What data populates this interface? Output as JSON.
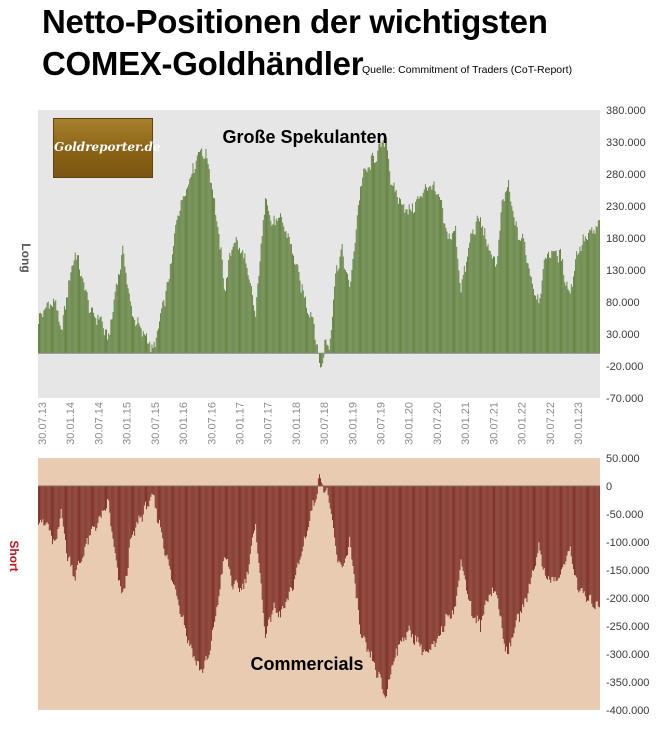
{
  "title_line1": "Netto-Positionen der wichtigsten",
  "title_line2": "COMEX-Goldhändler",
  "source": "Quelle: Commitment of Traders (CoT-Report)",
  "logo_text": "Goldreporter.de",
  "colors": {
    "long_bar": "#5e7f3a",
    "short_bar": "#7a2a23",
    "top_bg": "#e6e6e6",
    "bottom_bg": "#e8cbb1",
    "short_label": "#c0141c"
  },
  "chart_data": [
    {
      "type": "bar",
      "panel_label": "Große Spekulanten",
      "ylabel": "Long",
      "ylim": [
        -70000,
        380000
      ],
      "yticks": [
        "380.000",
        "330.000",
        "280.000",
        "230.000",
        "180.000",
        "130.000",
        "80.000",
        "30.000",
        "-20.000",
        "-70.000"
      ],
      "date_labels": [
        "30.07.13",
        "30.01.14",
        "30.07.14",
        "30.01.15",
        "30.07.15",
        "30.01.16",
        "30.07.16",
        "30.01.17",
        "30.07.17",
        "30.01.18",
        "30.07.18",
        "30.01.19",
        "30.07.19",
        "30.01.20",
        "30.07.20",
        "30.01.21",
        "30.07.21",
        "30.01.22",
        "30.07.22",
        "30.01.23"
      ],
      "x_range": [
        2013.58,
        2023.7
      ],
      "keypoints": [
        [
          2013.58,
          50000
        ],
        [
          2013.75,
          75000
        ],
        [
          2013.9,
          80000
        ],
        [
          2014.0,
          30000
        ],
        [
          2014.1,
          90000
        ],
        [
          2014.25,
          160000
        ],
        [
          2014.4,
          110000
        ],
        [
          2014.55,
          60000
        ],
        [
          2014.7,
          55000
        ],
        [
          2014.85,
          20000
        ],
        [
          2015.0,
          110000
        ],
        [
          2015.12,
          160000
        ],
        [
          2015.25,
          70000
        ],
        [
          2015.4,
          40000
        ],
        [
          2015.58,
          20000
        ],
        [
          2015.65,
          0
        ],
        [
          2015.8,
          60000
        ],
        [
          2015.95,
          120000
        ],
        [
          2016.1,
          220000
        ],
        [
          2016.3,
          270000
        ],
        [
          2016.5,
          320000
        ],
        [
          2016.65,
          300000
        ],
        [
          2016.8,
          210000
        ],
        [
          2016.95,
          100000
        ],
        [
          2017.1,
          180000
        ],
        [
          2017.3,
          150000
        ],
        [
          2017.5,
          60000
        ],
        [
          2017.68,
          250000
        ],
        [
          2017.8,
          200000
        ],
        [
          2017.95,
          210000
        ],
        [
          2018.1,
          180000
        ],
        [
          2018.25,
          130000
        ],
        [
          2018.4,
          80000
        ],
        [
          2018.55,
          50000
        ],
        [
          2018.62,
          0
        ],
        [
          2018.68,
          -30000
        ],
        [
          2018.75,
          20000
        ],
        [
          2018.82,
          5000
        ],
        [
          2018.95,
          130000
        ],
        [
          2019.05,
          160000
        ],
        [
          2019.2,
          100000
        ],
        [
          2019.4,
          270000
        ],
        [
          2019.6,
          300000
        ],
        [
          2019.75,
          320000
        ],
        [
          2019.85,
          340000
        ],
        [
          2019.95,
          260000
        ],
        [
          2020.1,
          240000
        ],
        [
          2020.25,
          220000
        ],
        [
          2020.45,
          240000
        ],
        [
          2020.55,
          260000
        ],
        [
          2020.7,
          260000
        ],
        [
          2020.85,
          230000
        ],
        [
          2020.95,
          180000
        ],
        [
          2021.1,
          190000
        ],
        [
          2021.2,
          100000
        ],
        [
          2021.4,
          190000
        ],
        [
          2021.55,
          210000
        ],
        [
          2021.7,
          160000
        ],
        [
          2021.85,
          140000
        ],
        [
          2021.95,
          240000
        ],
        [
          2022.05,
          260000
        ],
        [
          2022.2,
          190000
        ],
        [
          2022.35,
          170000
        ],
        [
          2022.45,
          120000
        ],
        [
          2022.6,
          80000
        ],
        [
          2022.72,
          150000
        ],
        [
          2022.85,
          160000
        ],
        [
          2023.0,
          150000
        ],
        [
          2023.15,
          90000
        ],
        [
          2023.3,
          160000
        ],
        [
          2023.45,
          180000
        ],
        [
          2023.58,
          190000
        ],
        [
          2023.7,
          200000
        ]
      ]
    },
    {
      "type": "bar",
      "panel_label": "Commercials",
      "ylabel": "Short",
      "ylim": [
        -400000,
        50000
      ],
      "yticks": [
        "50.000",
        "0",
        "-50.000",
        "-100.000",
        "-150.000",
        "-200.000",
        "-250.000",
        "-300.000",
        "-350.000",
        "-400.000"
      ],
      "x_range": [
        2013.58,
        2023.7
      ],
      "keypoints": [
        [
          2013.58,
          -60000
        ],
        [
          2013.75,
          -70000
        ],
        [
          2013.9,
          -110000
        ],
        [
          2014.0,
          -40000
        ],
        [
          2014.1,
          -120000
        ],
        [
          2014.25,
          -160000
        ],
        [
          2014.4,
          -120000
        ],
        [
          2014.55,
          -80000
        ],
        [
          2014.7,
          -60000
        ],
        [
          2014.85,
          -30000
        ],
        [
          2015.0,
          -150000
        ],
        [
          2015.12,
          -200000
        ],
        [
          2015.25,
          -100000
        ],
        [
          2015.4,
          -60000
        ],
        [
          2015.58,
          -30000
        ],
        [
          2015.65,
          -20000
        ],
        [
          2015.8,
          -80000
        ],
        [
          2015.95,
          -150000
        ],
        [
          2016.1,
          -200000
        ],
        [
          2016.3,
          -280000
        ],
        [
          2016.5,
          -330000
        ],
        [
          2016.65,
          -310000
        ],
        [
          2016.8,
          -220000
        ],
        [
          2016.95,
          -120000
        ],
        [
          2017.1,
          -180000
        ],
        [
          2017.3,
          -180000
        ],
        [
          2017.5,
          -70000
        ],
        [
          2017.68,
          -270000
        ],
        [
          2017.8,
          -220000
        ],
        [
          2017.95,
          -230000
        ],
        [
          2018.1,
          -200000
        ],
        [
          2018.25,
          -150000
        ],
        [
          2018.4,
          -90000
        ],
        [
          2018.55,
          -30000
        ],
        [
          2018.62,
          0
        ],
        [
          2018.68,
          20000
        ],
        [
          2018.75,
          -10000
        ],
        [
          2018.82,
          -20000
        ],
        [
          2018.95,
          -120000
        ],
        [
          2019.05,
          -150000
        ],
        [
          2019.2,
          -100000
        ],
        [
          2019.4,
          -270000
        ],
        [
          2019.6,
          -310000
        ],
        [
          2019.75,
          -350000
        ],
        [
          2019.85,
          -380000
        ],
        [
          2019.95,
          -320000
        ],
        [
          2020.1,
          -280000
        ],
        [
          2020.25,
          -260000
        ],
        [
          2020.45,
          -280000
        ],
        [
          2020.55,
          -300000
        ],
        [
          2020.7,
          -290000
        ],
        [
          2020.85,
          -260000
        ],
        [
          2020.95,
          -230000
        ],
        [
          2021.1,
          -220000
        ],
        [
          2021.2,
          -130000
        ],
        [
          2021.4,
          -230000
        ],
        [
          2021.55,
          -250000
        ],
        [
          2021.7,
          -190000
        ],
        [
          2021.85,
          -190000
        ],
        [
          2021.95,
          -270000
        ],
        [
          2022.05,
          -300000
        ],
        [
          2022.2,
          -240000
        ],
        [
          2022.35,
          -210000
        ],
        [
          2022.45,
          -170000
        ],
        [
          2022.6,
          -110000
        ],
        [
          2022.72,
          -160000
        ],
        [
          2022.85,
          -170000
        ],
        [
          2023.0,
          -160000
        ],
        [
          2023.15,
          -110000
        ],
        [
          2023.3,
          -180000
        ],
        [
          2023.45,
          -200000
        ],
        [
          2023.58,
          -210000
        ],
        [
          2023.7,
          -215000
        ]
      ]
    }
  ]
}
